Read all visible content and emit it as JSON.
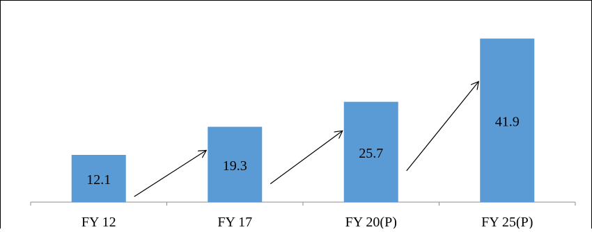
{
  "chart_data": {
    "type": "bar",
    "categories": [
      "FY 12",
      "FY 17",
      "FY 20(P)",
      "FY 25(P)"
    ],
    "values": [
      12.1,
      19.3,
      25.7,
      41.9
    ],
    "data_labels": [
      "12.1",
      "19.3",
      "25.7",
      "41.9"
    ],
    "title": "",
    "xlabel": "",
    "ylabel": "",
    "ylim": [
      0,
      50
    ],
    "grid": false,
    "legend": "none",
    "bar_color": "#5b9bd5",
    "arrows_between_bars": true
  }
}
